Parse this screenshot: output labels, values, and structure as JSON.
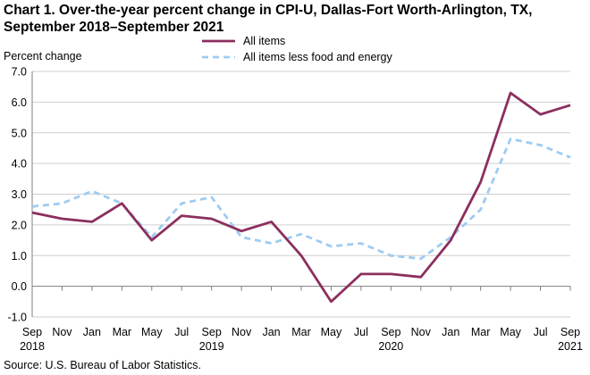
{
  "chart_data": {
    "type": "line",
    "title": "Chart 1. Over-the-year percent change in CPI-U, Dallas-Fort Worth-Arlington, TX, September 2018–September  2021",
    "ylabel": "Percent change",
    "source": "Source: U.S. Bureau  of Labor Statistics.",
    "ylim": [
      -1.0,
      7.0
    ],
    "yticks": [
      "-1.0",
      "0.0",
      "1.0",
      "2.0",
      "3.0",
      "4.0",
      "5.0",
      "6.0",
      "7.0"
    ],
    "ytick_values": [
      -1,
      0,
      1,
      2,
      3,
      4,
      5,
      6,
      7
    ],
    "x": [
      "Sep 2018",
      "Nov 2018",
      "Jan 2019",
      "Mar 2019",
      "May 2019",
      "Jul 2019",
      "Sep 2019",
      "Nov 2019",
      "Jan 2020",
      "Mar 2020",
      "May 2020",
      "Jul 2020",
      "Sep 2020",
      "Nov 2020",
      "Jan 2021",
      "Mar 2021",
      "May 2021",
      "Jul 2021",
      "Sep 2021"
    ],
    "xtick_months": [
      "Sep",
      "Nov",
      "Jan",
      "Mar",
      "May",
      "Jul",
      "Sep",
      "Nov",
      "Jan",
      "Mar",
      "May",
      "Jul",
      "Sep",
      "Nov",
      "Jan",
      "Mar",
      "May",
      "Jul",
      "Sep"
    ],
    "xtick_years": [
      "2018",
      "",
      "",
      "",
      "",
      "",
      "2019",
      "",
      "",
      "",
      "",
      "",
      "2020",
      "",
      "",
      "",
      "",
      "",
      "2021"
    ],
    "grid": true,
    "legend_position": "top-center",
    "series": [
      {
        "name": "All items",
        "style": "solid",
        "color": "#8b2f5e",
        "values": [
          2.4,
          2.2,
          2.1,
          2.7,
          1.5,
          2.3,
          2.2,
          1.8,
          2.1,
          1.0,
          -0.5,
          0.4,
          0.4,
          0.3,
          1.5,
          3.4,
          6.3,
          5.6,
          5.9
        ]
      },
      {
        "name": "All items less food and energy",
        "style": "dashed",
        "color": "#9ecbf2",
        "values": [
          2.6,
          2.7,
          3.1,
          2.7,
          1.6,
          2.7,
          2.9,
          1.6,
          1.4,
          1.7,
          1.3,
          1.4,
          1.0,
          0.9,
          1.6,
          2.5,
          4.8,
          4.6,
          4.2
        ]
      }
    ]
  }
}
